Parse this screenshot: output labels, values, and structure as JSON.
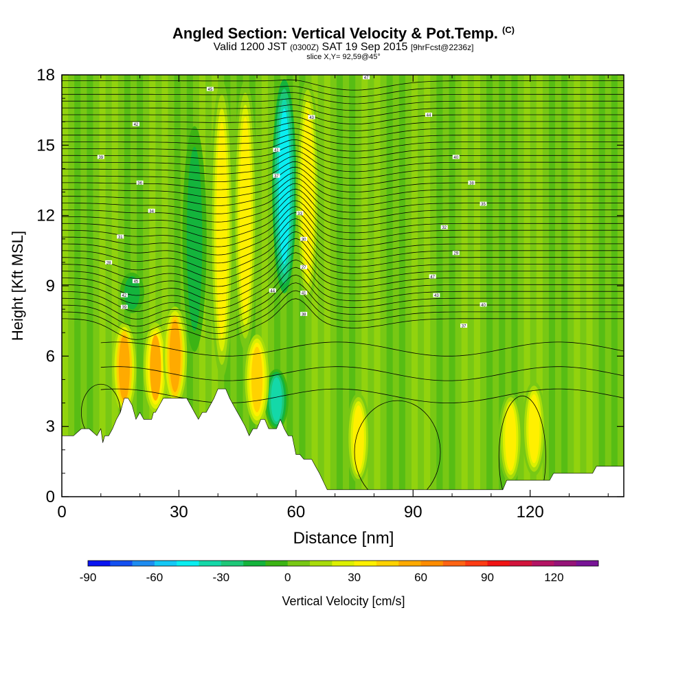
{
  "title": {
    "main": "Angled Section: Vertical Velocity & Pot.Temp.",
    "copyright": "(C)",
    "valid_prefix": "Valid 1200 JST",
    "valid_utc": "(0300Z)",
    "valid_date": "SAT 19 Sep 2015",
    "forecast": "[9hrFcst@2236z]",
    "slice": "slice X,Y= 92,59@45°"
  },
  "chart_data": {
    "type": "heatmap",
    "xlabel": "Distance [nm]",
    "ylabel": "Height [Kft MSL]",
    "xlim": [
      0,
      144
    ],
    "ylim": [
      0,
      18
    ],
    "x_ticks": [
      0,
      30,
      60,
      90,
      120
    ],
    "y_ticks": [
      0,
      3,
      6,
      9,
      12,
      15,
      18
    ],
    "colorbar": {
      "label": "Vertical Velocity [cm/s]",
      "min": -90,
      "max": 140,
      "ticks": [
        -90,
        -60,
        -30,
        0,
        30,
        60,
        90,
        120
      ],
      "colors": [
        "#0a14f0",
        "#1450f0",
        "#1e8cf0",
        "#14c8f5",
        "#0aeef0",
        "#14d8a8",
        "#1ec878",
        "#14b43c",
        "#3cb414",
        "#78c814",
        "#a8dc0a",
        "#dcf000",
        "#fff000",
        "#ffd200",
        "#ffaa00",
        "#ff8c00",
        "#ff6414",
        "#ff3c14",
        "#f01414",
        "#d2143c",
        "#b41464",
        "#961478",
        "#781496"
      ]
    },
    "series": [
      {
        "name": "Vertical Velocity",
        "note": "filled shading (cm/s)"
      },
      {
        "name": "Pot.Temp.",
        "note": "contour lines"
      }
    ],
    "updrafts": [
      {
        "x": 16,
        "z0": 3.5,
        "z1": 7.5,
        "value": 55
      },
      {
        "x": 24,
        "z0": 3.5,
        "z1": 7.5,
        "value": 50
      },
      {
        "x": 29,
        "z0": 3.8,
        "z1": 8.2,
        "value": 55
      },
      {
        "x": 41,
        "z0": 4.8,
        "z1": 18,
        "value": 30
      },
      {
        "x": 47,
        "z0": 6,
        "z1": 18,
        "value": 30
      },
      {
        "x": 50,
        "z0": 3,
        "z1": 7,
        "value": 45
      },
      {
        "x": 63,
        "z0": 8,
        "z1": 18,
        "value": 30
      },
      {
        "x": 76,
        "z0": 0.5,
        "z1": 4.5,
        "value": 30
      },
      {
        "x": 115,
        "z0": 0.5,
        "z1": 4.5,
        "value": 30
      },
      {
        "x": 121,
        "z0": 0.8,
        "z1": 5.0,
        "value": 30
      }
    ],
    "downdrafts": [
      {
        "x": 57,
        "z0": 8.5,
        "z1": 18,
        "value": -45
      },
      {
        "x": 55,
        "z0": 2.8,
        "z1": 5.5,
        "value": -35
      },
      {
        "x": 34,
        "z0": 6,
        "z1": 16,
        "value": -15
      },
      {
        "x": 18,
        "z0": 7.8,
        "z1": 9.6,
        "value": -15
      }
    ],
    "terrain_height_kft": [
      [
        0,
        2.6
      ],
      [
        3,
        2.6
      ],
      [
        5,
        2.9
      ],
      [
        7,
        2.9
      ],
      [
        9,
        2.6
      ],
      [
        10,
        2.9
      ],
      [
        10.5,
        2.3
      ],
      [
        11,
        2.6
      ],
      [
        12,
        2.6
      ],
      [
        13,
        2.9
      ],
      [
        14,
        3.3
      ],
      [
        15,
        3.6
      ],
      [
        15.5,
        3.9
      ],
      [
        16,
        4.2
      ],
      [
        17,
        4.2
      ],
      [
        18,
        3.9
      ],
      [
        18.5,
        3.6
      ],
      [
        19,
        3.3
      ],
      [
        20,
        3.6
      ],
      [
        21,
        3.3
      ],
      [
        23,
        3.3
      ],
      [
        23.5,
        3.6
      ],
      [
        24,
        3.6
      ],
      [
        25,
        3.9
      ],
      [
        26,
        4.2
      ],
      [
        27,
        4.2
      ],
      [
        29,
        4.2
      ],
      [
        32,
        4.2
      ],
      [
        33,
        3.9
      ],
      [
        34,
        3.6
      ],
      [
        35,
        3.3
      ],
      [
        36,
        3.6
      ],
      [
        37,
        3.6
      ],
      [
        38,
        3.9
      ],
      [
        39,
        4.2
      ],
      [
        40,
        4.6
      ],
      [
        42,
        4.6
      ],
      [
        43,
        4.2
      ],
      [
        44,
        3.9
      ],
      [
        45,
        3.6
      ],
      [
        46,
        3.3
      ],
      [
        47,
        3.0
      ],
      [
        48,
        2.6
      ],
      [
        49,
        2.9
      ],
      [
        50,
        2.9
      ],
      [
        51,
        3.3
      ],
      [
        52,
        3.3
      ],
      [
        53,
        2.9
      ],
      [
        55,
        2.9
      ],
      [
        56,
        3.3
      ],
      [
        57,
        2.9
      ],
      [
        58,
        2.6
      ],
      [
        59,
        2.6
      ],
      [
        60,
        1.8
      ],
      [
        61,
        1.8
      ],
      [
        62,
        1.6
      ],
      [
        64,
        1.6
      ],
      [
        65,
        1.3
      ],
      [
        66,
        1.0
      ],
      [
        67,
        0.65
      ],
      [
        68,
        0.3
      ],
      [
        72,
        0.3
      ],
      [
        113,
        0.3
      ],
      [
        114,
        0.7
      ],
      [
        125,
        0.7
      ],
      [
        126,
        1.0
      ],
      [
        136,
        1.0
      ],
      [
        137,
        1.3
      ],
      [
        144,
        1.3
      ]
    ],
    "theta_levels_labels": [
      "47",
      "45",
      "44",
      "43",
      "42",
      "41",
      "40",
      "39",
      "38",
      "37",
      "36",
      "35",
      "34",
      "33",
      "32",
      "31",
      "30",
      "29",
      "28",
      "27"
    ],
    "legend": "bottom colorbar",
    "grid": false
  }
}
